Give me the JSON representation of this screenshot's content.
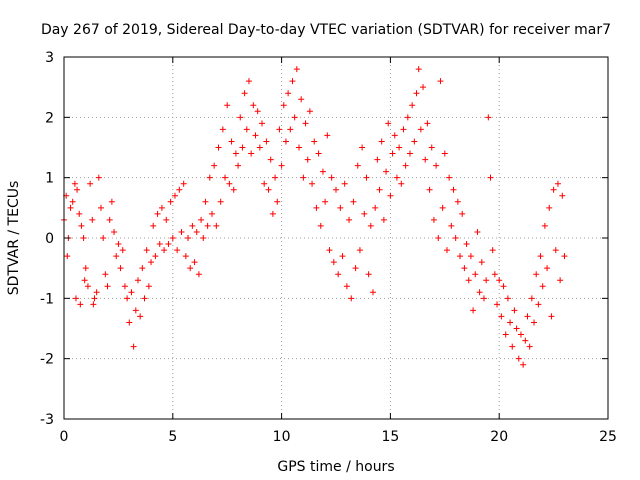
{
  "chart_data": {
    "type": "scatter",
    "title": "Day 267 of 2019, Sidereal Day-to-day VTEC variation (SDTVAR) for receiver mar7",
    "xlabel": "GPS time / hours",
    "ylabel": "SDTVAR / TECUs",
    "xlim": [
      0,
      25
    ],
    "ylim": [
      -3,
      3
    ],
    "xticks": [
      0,
      5,
      10,
      15,
      20,
      25
    ],
    "yticks": [
      -3,
      -2,
      -1,
      0,
      1,
      2,
      3
    ],
    "grid": true,
    "marker": "+",
    "color": "#ff0000",
    "series": [
      {
        "name": "SDTVAR",
        "points": [
          [
            0.0,
            0.3
          ],
          [
            0.1,
            0.7
          ],
          [
            0.15,
            -0.3
          ],
          [
            0.2,
            0.0
          ],
          [
            0.3,
            0.5
          ],
          [
            0.4,
            0.6
          ],
          [
            0.5,
            0.9
          ],
          [
            0.55,
            -1.0
          ],
          [
            0.6,
            0.8
          ],
          [
            0.7,
            0.4
          ],
          [
            0.75,
            -1.1
          ],
          [
            0.8,
            0.2
          ],
          [
            0.9,
            0.0
          ],
          [
            0.95,
            -0.7
          ],
          [
            1.0,
            -0.5
          ],
          [
            1.1,
            -0.8
          ],
          [
            1.2,
            0.9
          ],
          [
            1.3,
            0.3
          ],
          [
            1.35,
            -1.1
          ],
          [
            1.4,
            -1.0
          ],
          [
            1.5,
            -0.9
          ],
          [
            1.6,
            1.0
          ],
          [
            1.7,
            0.5
          ],
          [
            1.8,
            0.0
          ],
          [
            1.9,
            -0.6
          ],
          [
            2.0,
            -0.8
          ],
          [
            2.1,
            0.3
          ],
          [
            2.2,
            0.6
          ],
          [
            2.3,
            0.1
          ],
          [
            2.4,
            -0.3
          ],
          [
            2.5,
            -0.1
          ],
          [
            2.6,
            -0.5
          ],
          [
            2.7,
            -0.2
          ],
          [
            2.8,
            -0.8
          ],
          [
            2.9,
            -1.0
          ],
          [
            3.0,
            -1.4
          ],
          [
            3.1,
            -0.9
          ],
          [
            3.2,
            -1.8
          ],
          [
            3.3,
            -1.2
          ],
          [
            3.4,
            -0.7
          ],
          [
            3.5,
            -1.3
          ],
          [
            3.6,
            -0.5
          ],
          [
            3.7,
            -1.0
          ],
          [
            3.8,
            -0.2
          ],
          [
            3.9,
            -0.8
          ],
          [
            4.0,
            -0.4
          ],
          [
            4.1,
            0.2
          ],
          [
            4.2,
            -0.3
          ],
          [
            4.3,
            0.4
          ],
          [
            4.4,
            -0.1
          ],
          [
            4.5,
            0.5
          ],
          [
            4.6,
            -0.2
          ],
          [
            4.7,
            0.3
          ],
          [
            4.8,
            -0.1
          ],
          [
            4.9,
            0.6
          ],
          [
            5.0,
            0.0
          ],
          [
            5.1,
            0.7
          ],
          [
            5.2,
            -0.2
          ],
          [
            5.3,
            0.8
          ],
          [
            5.4,
            0.1
          ],
          [
            5.5,
            0.9
          ],
          [
            5.6,
            -0.3
          ],
          [
            5.7,
            0.0
          ],
          [
            5.8,
            -0.5
          ],
          [
            5.9,
            0.2
          ],
          [
            6.0,
            -0.4
          ],
          [
            6.1,
            0.1
          ],
          [
            6.2,
            -0.6
          ],
          [
            6.3,
            0.3
          ],
          [
            6.4,
            0.0
          ],
          [
            6.5,
            0.6
          ],
          [
            6.6,
            0.2
          ],
          [
            6.7,
            1.0
          ],
          [
            6.8,
            0.4
          ],
          [
            6.9,
            1.2
          ],
          [
            7.0,
            0.2
          ],
          [
            7.1,
            1.5
          ],
          [
            7.2,
            0.6
          ],
          [
            7.3,
            1.8
          ],
          [
            7.4,
            1.0
          ],
          [
            7.5,
            2.2
          ],
          [
            7.6,
            0.9
          ],
          [
            7.7,
            1.6
          ],
          [
            7.8,
            0.8
          ],
          [
            7.9,
            1.4
          ],
          [
            8.0,
            1.2
          ],
          [
            8.1,
            2.0
          ],
          [
            8.2,
            1.5
          ],
          [
            8.3,
            2.4
          ],
          [
            8.4,
            1.8
          ],
          [
            8.5,
            2.6
          ],
          [
            8.6,
            1.4
          ],
          [
            8.7,
            2.2
          ],
          [
            8.8,
            1.7
          ],
          [
            8.9,
            2.1
          ],
          [
            9.0,
            1.5
          ],
          [
            9.1,
            1.9
          ],
          [
            9.2,
            0.9
          ],
          [
            9.3,
            1.6
          ],
          [
            9.4,
            0.8
          ],
          [
            9.5,
            1.3
          ],
          [
            9.6,
            0.4
          ],
          [
            9.7,
            1.0
          ],
          [
            9.8,
            0.6
          ],
          [
            9.9,
            1.8
          ],
          [
            10.0,
            1.2
          ],
          [
            10.1,
            2.2
          ],
          [
            10.2,
            1.6
          ],
          [
            10.3,
            2.4
          ],
          [
            10.4,
            1.8
          ],
          [
            10.5,
            2.6
          ],
          [
            10.6,
            2.0
          ],
          [
            10.7,
            2.8
          ],
          [
            10.8,
            1.5
          ],
          [
            10.9,
            2.3
          ],
          [
            11.0,
            1.0
          ],
          [
            11.1,
            1.9
          ],
          [
            11.2,
            1.3
          ],
          [
            11.3,
            2.1
          ],
          [
            11.4,
            0.9
          ],
          [
            11.5,
            1.6
          ],
          [
            11.6,
            0.5
          ],
          [
            11.7,
            1.4
          ],
          [
            11.8,
            0.2
          ],
          [
            11.9,
            1.1
          ],
          [
            12.0,
            0.6
          ],
          [
            12.1,
            1.7
          ],
          [
            12.2,
            -0.2
          ],
          [
            12.3,
            1.0
          ],
          [
            12.4,
            -0.4
          ],
          [
            12.5,
            0.8
          ],
          [
            12.6,
            -0.6
          ],
          [
            12.7,
            0.5
          ],
          [
            12.8,
            -0.3
          ],
          [
            12.9,
            0.9
          ],
          [
            13.0,
            -0.8
          ],
          [
            13.1,
            0.3
          ],
          [
            13.2,
            -1.0
          ],
          [
            13.3,
            0.6
          ],
          [
            13.4,
            -0.5
          ],
          [
            13.5,
            1.2
          ],
          [
            13.6,
            -0.2
          ],
          [
            13.7,
            1.5
          ],
          [
            13.8,
            0.4
          ],
          [
            13.9,
            1.0
          ],
          [
            14.0,
            -0.6
          ],
          [
            14.1,
            0.2
          ],
          [
            14.2,
            -0.9
          ],
          [
            14.3,
            0.5
          ],
          [
            14.4,
            1.3
          ],
          [
            14.5,
            0.8
          ],
          [
            14.6,
            1.6
          ],
          [
            14.7,
            0.3
          ],
          [
            14.8,
            1.1
          ],
          [
            14.9,
            1.9
          ],
          [
            15.0,
            0.7
          ],
          [
            15.1,
            1.4
          ],
          [
            15.2,
            1.7
          ],
          [
            15.3,
            1.0
          ],
          [
            15.4,
            1.5
          ],
          [
            15.5,
            0.9
          ],
          [
            15.6,
            1.8
          ],
          [
            15.7,
            1.2
          ],
          [
            15.8,
            2.0
          ],
          [
            15.9,
            1.4
          ],
          [
            16.0,
            2.2
          ],
          [
            16.1,
            1.6
          ],
          [
            16.2,
            2.4
          ],
          [
            16.3,
            2.8
          ],
          [
            16.4,
            1.8
          ],
          [
            16.5,
            2.5
          ],
          [
            16.6,
            1.3
          ],
          [
            16.7,
            1.9
          ],
          [
            16.8,
            0.8
          ],
          [
            16.9,
            1.5
          ],
          [
            17.0,
            0.3
          ],
          [
            17.1,
            1.2
          ],
          [
            17.2,
            0.0
          ],
          [
            17.3,
            2.6
          ],
          [
            17.4,
            0.5
          ],
          [
            17.5,
            1.4
          ],
          [
            17.6,
            -0.2
          ],
          [
            17.7,
            1.0
          ],
          [
            17.8,
            0.2
          ],
          [
            17.9,
            0.8
          ],
          [
            18.0,
            0.0
          ],
          [
            18.1,
            0.6
          ],
          [
            18.2,
            -0.3
          ],
          [
            18.3,
            0.4
          ],
          [
            18.4,
            -0.5
          ],
          [
            18.5,
            -0.1
          ],
          [
            18.6,
            -0.7
          ],
          [
            18.7,
            -0.3
          ],
          [
            18.8,
            -1.2
          ],
          [
            18.9,
            -0.6
          ],
          [
            19.0,
            0.1
          ],
          [
            19.1,
            -0.9
          ],
          [
            19.2,
            -0.4
          ],
          [
            19.3,
            -1.0
          ],
          [
            19.4,
            -0.7
          ],
          [
            19.5,
            2.0
          ],
          [
            19.6,
            1.0
          ],
          [
            19.7,
            -0.2
          ],
          [
            19.8,
            -0.6
          ],
          [
            19.9,
            -1.1
          ],
          [
            20.0,
            -0.7
          ],
          [
            20.1,
            -1.3
          ],
          [
            20.2,
            -0.8
          ],
          [
            20.3,
            -1.6
          ],
          [
            20.4,
            -1.0
          ],
          [
            20.5,
            -1.4
          ],
          [
            20.6,
            -1.8
          ],
          [
            20.7,
            -1.2
          ],
          [
            20.8,
            -1.5
          ],
          [
            20.9,
            -2.0
          ],
          [
            21.0,
            -1.6
          ],
          [
            21.1,
            -2.1
          ],
          [
            21.2,
            -1.7
          ],
          [
            21.3,
            -1.3
          ],
          [
            21.4,
            -1.8
          ],
          [
            21.5,
            -1.0
          ],
          [
            21.6,
            -1.4
          ],
          [
            21.7,
            -0.6
          ],
          [
            21.8,
            -1.1
          ],
          [
            21.9,
            -0.3
          ],
          [
            22.0,
            -0.8
          ],
          [
            22.1,
            0.2
          ],
          [
            22.2,
            -0.5
          ],
          [
            22.3,
            0.5
          ],
          [
            22.4,
            -1.3
          ],
          [
            22.5,
            0.8
          ],
          [
            22.6,
            -0.2
          ],
          [
            22.7,
            0.9
          ],
          [
            22.8,
            -0.7
          ],
          [
            22.9,
            0.7
          ],
          [
            23.0,
            -0.3
          ]
        ]
      }
    ]
  }
}
